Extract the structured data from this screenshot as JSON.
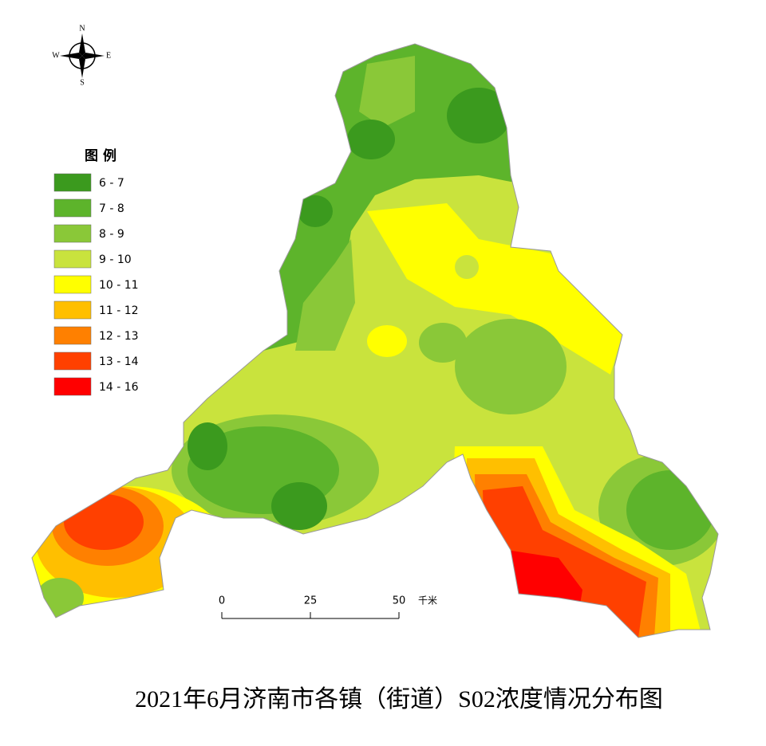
{
  "title": "2021年6月济南市各镇（街道）S02浓度情况分布图",
  "compass": {
    "north": "N",
    "south": "S",
    "west": "W",
    "east": "E"
  },
  "legend": {
    "title": "图 例",
    "items": [
      {
        "label": "6 - 7",
        "color": "#3b9a1e"
      },
      {
        "label": "7 - 8",
        "color": "#5db42b"
      },
      {
        "label": "8 - 9",
        "color": "#8ac838"
      },
      {
        "label": "9 - 10",
        "color": "#c9e33d"
      },
      {
        "label": "10 - 11",
        "color": "#ffff00"
      },
      {
        "label": "11 - 12",
        "color": "#ffbf00"
      },
      {
        "label": "12 - 13",
        "color": "#ff8000"
      },
      {
        "label": "13 - 14",
        "color": "#ff4000"
      },
      {
        "label": "14 - 16",
        "color": "#ff0000"
      }
    ]
  },
  "scale_bar": {
    "ticks": [
      0,
      25,
      50
    ],
    "unit": "千米"
  }
}
